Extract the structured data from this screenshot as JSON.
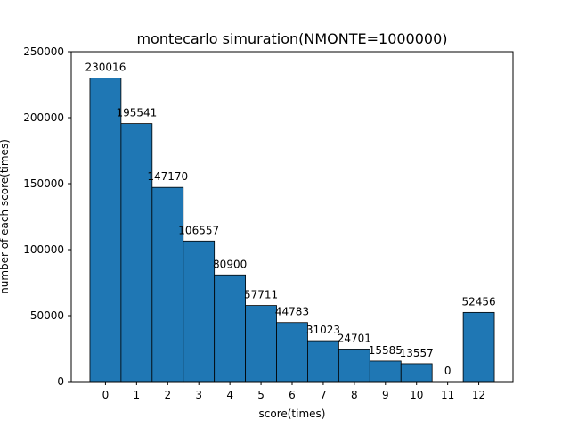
{
  "chart_data": {
    "type": "bar",
    "title": "montecarlo simuration(NMONTE=1000000)",
    "xlabel": "score(times)",
    "ylabel": "number of each score(times)",
    "categories": [
      "0",
      "1",
      "2",
      "3",
      "4",
      "5",
      "6",
      "7",
      "8",
      "9",
      "10",
      "11",
      "12"
    ],
    "values": [
      230016,
      195541,
      147170,
      106557,
      80900,
      57711,
      44783,
      31023,
      24701,
      15585,
      13557,
      0,
      52456
    ],
    "data_labels": [
      "230016",
      "195541",
      "147170",
      "106557",
      "80900",
      "57711",
      "44783",
      "31023",
      "24701",
      "15585",
      "13557",
      "0",
      "52456"
    ],
    "ylim": [
      0,
      250000
    ],
    "yticks": [
      0,
      50000,
      100000,
      150000,
      200000,
      250000
    ],
    "ytick_labels": [
      "0",
      "50000",
      "100000",
      "150000",
      "200000",
      "250000"
    ],
    "grid": false,
    "bar_color": "#1f77b4",
    "edge_color": "#000000"
  }
}
